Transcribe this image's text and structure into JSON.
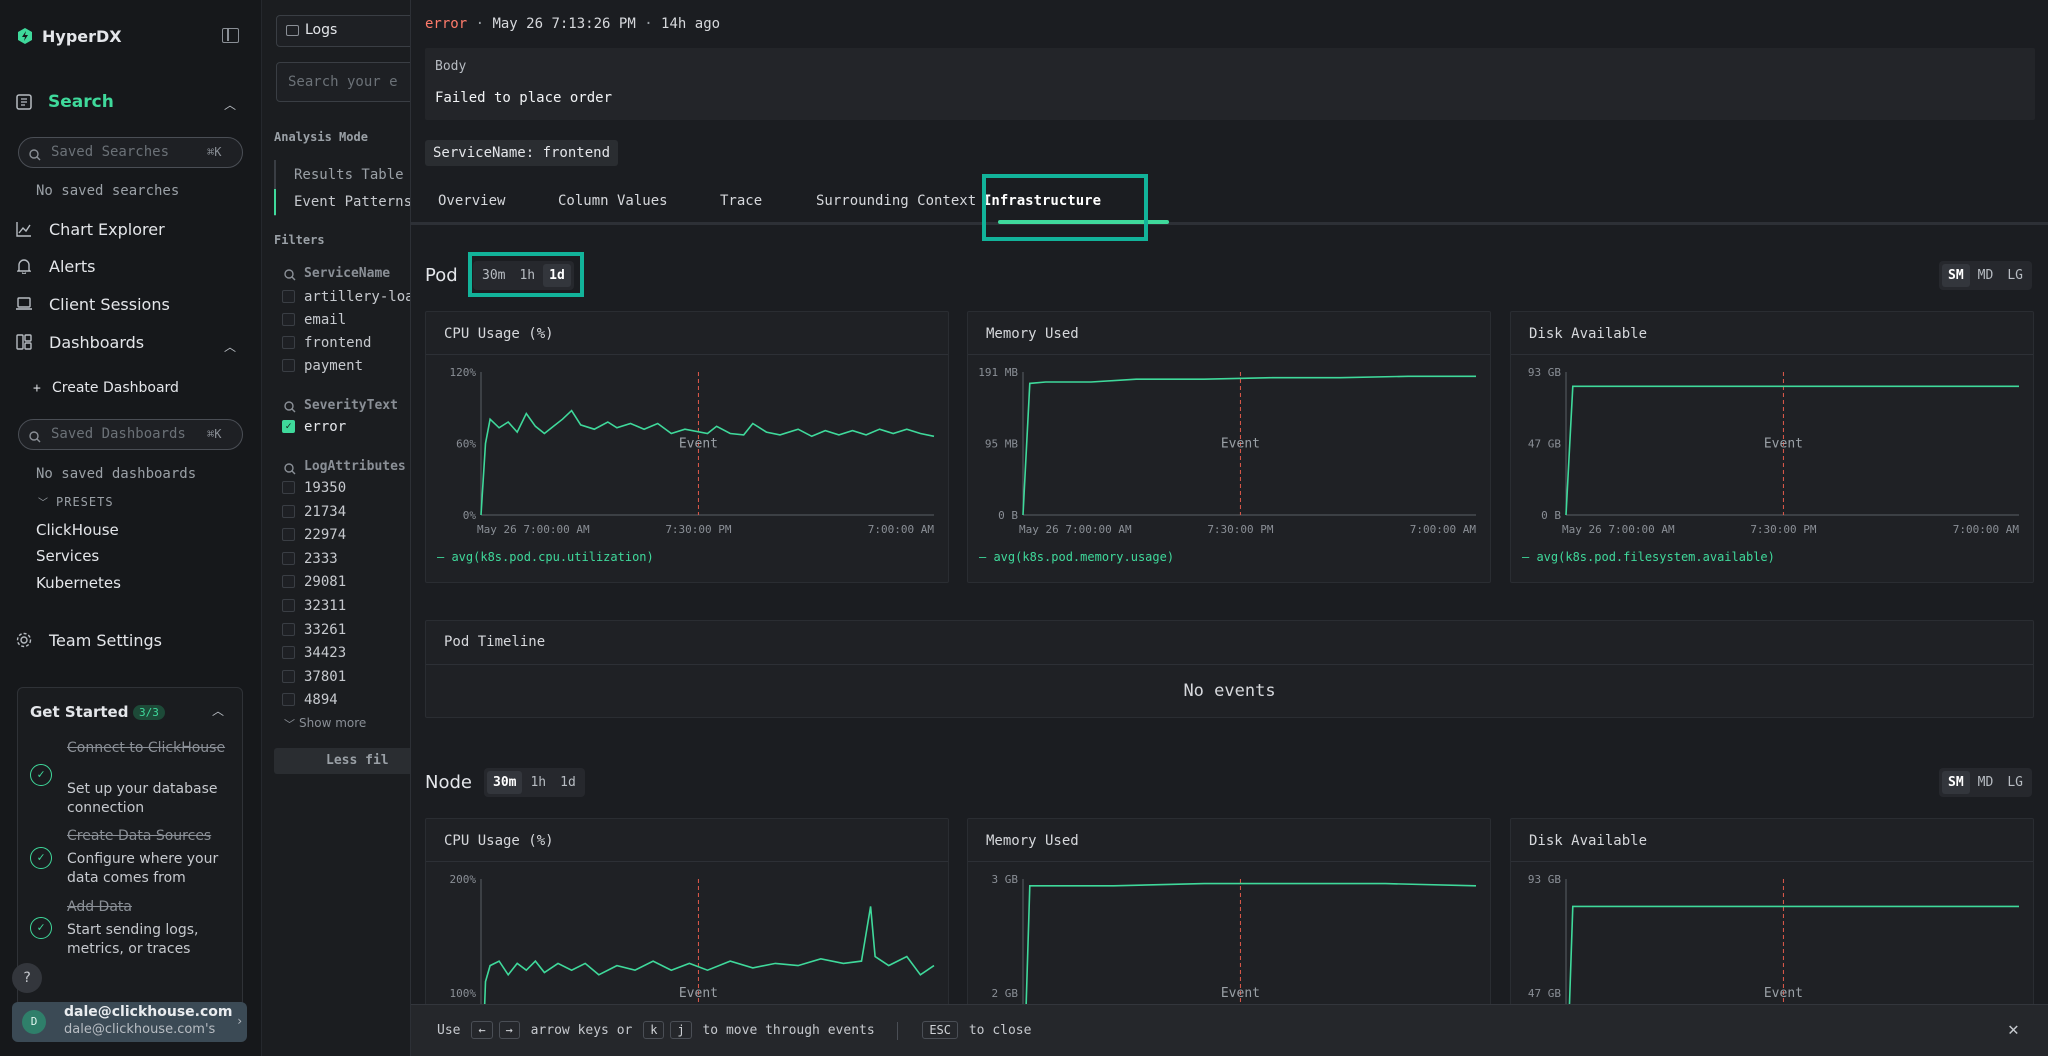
{
  "sidebar": {
    "app_name": "HyperDX",
    "search_label": "Search",
    "saved_searches_placeholder": "Saved Searches",
    "shortcut": "⌘K",
    "no_saved_searches": "No saved searches",
    "nav": {
      "chart_explorer": "Chart Explorer",
      "alerts": "Alerts",
      "client_sessions": "Client Sessions",
      "dashboards": "Dashboards"
    },
    "create_dashboard": "Create Dashboard",
    "saved_dashboards_placeholder": "Saved Dashboards",
    "no_saved_dashboards": "No saved dashboards",
    "presets_label": "PRESETS",
    "presets": [
      "ClickHouse",
      "Services",
      "Kubernetes"
    ],
    "team_settings": "Team Settings",
    "get_started": {
      "title": "Get Started",
      "badge": "3/3",
      "steps": [
        {
          "title": "Connect to ClickHouse",
          "desc": "Set up your database connection"
        },
        {
          "title": "Create Data Sources",
          "desc": "Configure where your data comes from"
        },
        {
          "title": "Add Data",
          "desc": "Start sending logs, metrics, or traces"
        }
      ]
    },
    "help": "?",
    "user": {
      "initial": "D",
      "email": "dale@clickhouse.com",
      "team": "dale@clickhouse.com's"
    }
  },
  "middle": {
    "source": "Logs",
    "search_placeholder": "Search your e",
    "analysis_mode": "Analysis Mode",
    "modes": [
      "Results Table",
      "Event Patterns"
    ],
    "filters": "Filters",
    "service_name": "ServiceName",
    "services": [
      "artillery-loa",
      "email",
      "frontend",
      "payment"
    ],
    "severity_text": "SeverityText",
    "severities": [
      "error"
    ],
    "log_attributes": "LogAttributes",
    "attrs": [
      "19350",
      "21734",
      "22974",
      "2333",
      "29081",
      "32311",
      "33261",
      "34423",
      "37801",
      "4894"
    ],
    "show_more": "Show more",
    "less_filters": "Less fil"
  },
  "panel": {
    "severity": "error",
    "timestamp": "May 26 7:13:26 PM",
    "relative": "14h ago",
    "body_label": "Body",
    "body_text": "Failed to place order",
    "service_tag": "ServiceName: frontend",
    "tabs": [
      "Overview",
      "Column Values",
      "Trace",
      "Surrounding Context",
      "Infrastructure"
    ],
    "pod": {
      "title": "Pod",
      "ranges": [
        "30m",
        "1h",
        "1d"
      ],
      "selected_range": "1d",
      "sizes": [
        "SM",
        "MD",
        "LG"
      ],
      "selected_size": "SM"
    },
    "node": {
      "title": "Node",
      "ranges": [
        "30m",
        "1h",
        "1d"
      ],
      "selected_range": "30m",
      "sizes": [
        "SM",
        "MD",
        "LG"
      ],
      "selected_size": "SM"
    },
    "pod_timeline": "Pod Timeline",
    "no_events": "No events",
    "event_label": "Event",
    "footer": {
      "use": "Use",
      "left": "←",
      "right": "→",
      "arrow_text": "arrow keys or",
      "k": "k",
      "j": "j",
      "move_text": "to move through events",
      "esc": "ESC",
      "close_text": "to close"
    }
  },
  "charts": {
    "pod_cpu": {
      "title": "CPU Usage (%)",
      "y_ticks": [
        "120%",
        "60%",
        "0%"
      ],
      "x_ticks": [
        "May 26 7:00:00 AM",
        "7:30:00 PM",
        "7:00:00 AM"
      ],
      "legend": "avg(k8s.pod.cpu.utilization)"
    },
    "pod_mem": {
      "title": "Memory Used",
      "y_ticks": [
        "191 MB",
        "95 MB",
        "0 B"
      ],
      "x_ticks": [
        "May 26 7:00:00 AM",
        "7:30:00 PM",
        "7:00:00 AM"
      ],
      "legend": "avg(k8s.pod.memory.usage)"
    },
    "pod_disk": {
      "title": "Disk Available",
      "y_ticks": [
        "93 GB",
        "47 GB",
        "0 B"
      ],
      "x_ticks": [
        "May 26 7:00:00 AM",
        "7:30:00 PM",
        "7:00:00 AM"
      ],
      "legend": "avg(k8s.pod.filesystem.available)"
    },
    "node_cpu": {
      "title": "CPU Usage (%)",
      "y_ticks": [
        "200%",
        "100%"
      ]
    },
    "node_mem": {
      "title": "Memory Used",
      "y_ticks": [
        "3 GB",
        "2 GB"
      ]
    },
    "node_disk": {
      "title": "Disk Available",
      "y_ticks": [
        "93 GB",
        "47 GB"
      ]
    }
  },
  "colors": {
    "accent": "#3fd99b",
    "highlight": "#12b39a",
    "event_line": "#e05a4a",
    "error": "#ff7b6b"
  }
}
